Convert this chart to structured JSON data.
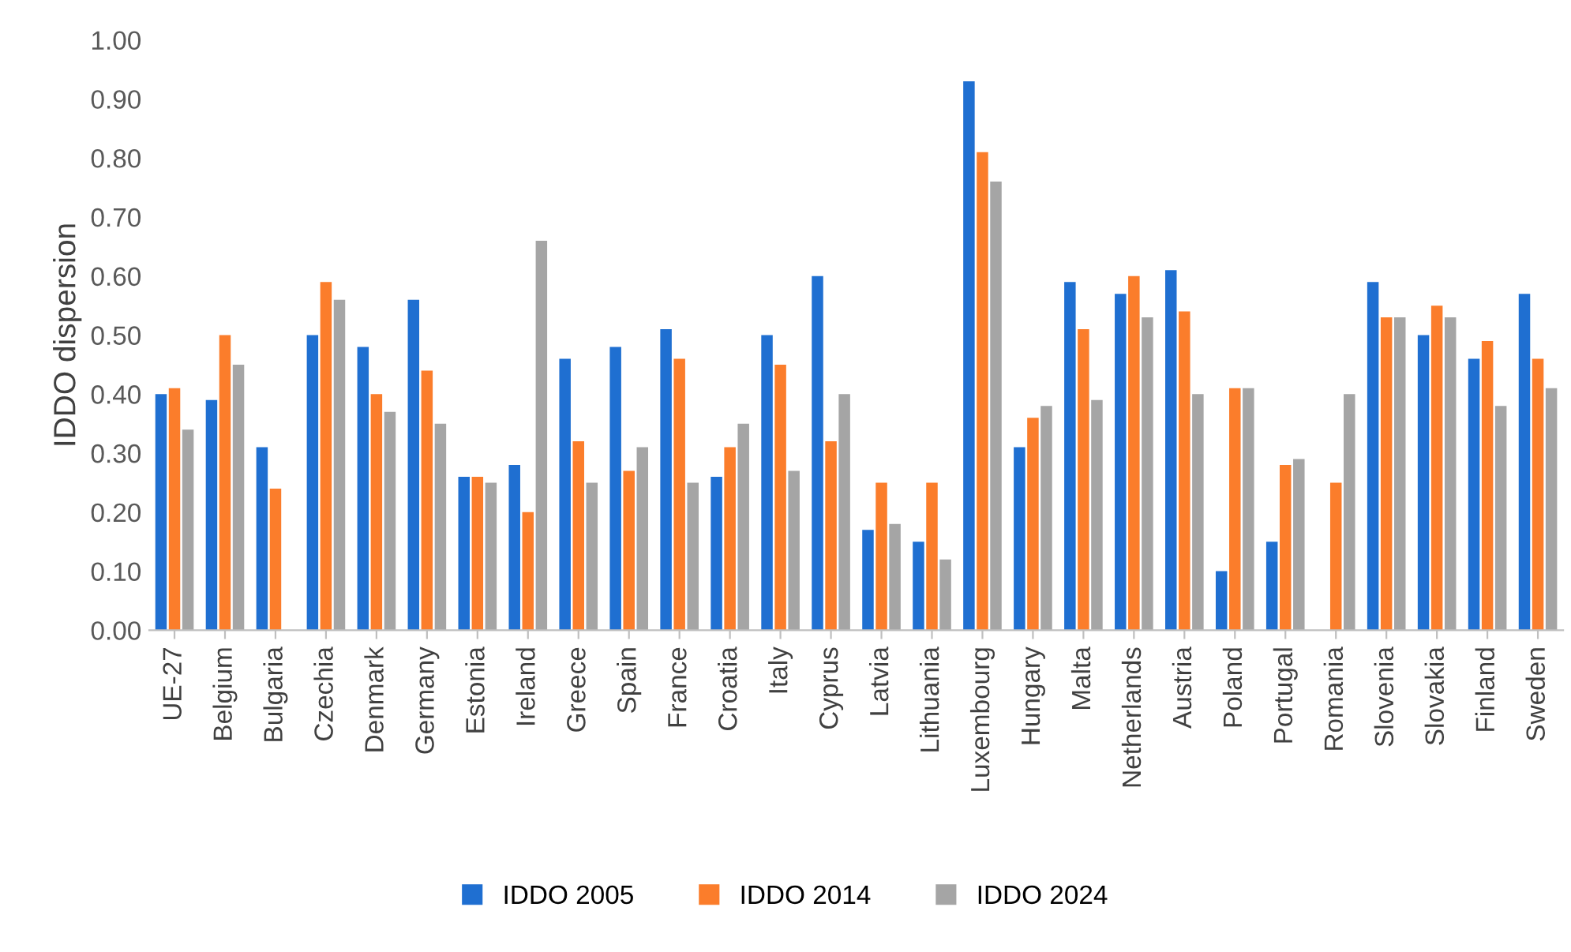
{
  "chart_data": {
    "type": "bar",
    "ylabel": "IDDO dispersion",
    "categories": [
      "UE-27",
      "Belgium",
      "Bulgaria",
      "Czechia",
      "Denmark",
      "Germany",
      "Estonia",
      "Ireland",
      "Greece",
      "Spain",
      "France",
      "Croatia",
      "Italy",
      "Cyprus",
      "Latvia",
      "Lithuania",
      "Luxembourg",
      "Hungary",
      "Malta",
      "Netherlands",
      "Austria",
      "Poland",
      "Portugal",
      "Romania",
      "Slovenia",
      "Slovakia",
      "Finland",
      "Sweden"
    ],
    "series": [
      {
        "name": "IDDO 2005",
        "color": "#1f6fd1",
        "values": [
          0.4,
          0.39,
          0.31,
          0.5,
          0.48,
          0.56,
          0.26,
          0.28,
          0.46,
          0.48,
          0.51,
          0.26,
          0.5,
          0.6,
          0.17,
          0.15,
          0.93,
          0.31,
          0.59,
          0.57,
          0.61,
          0.1,
          0.15,
          null,
          0.59,
          0.5,
          0.46,
          0.57
        ]
      },
      {
        "name": "IDDO 2014",
        "color": "#fb7d2b",
        "values": [
          0.41,
          0.5,
          0.24,
          0.59,
          0.4,
          0.44,
          0.26,
          0.2,
          0.32,
          0.27,
          0.46,
          0.31,
          0.45,
          0.32,
          0.25,
          0.25,
          0.81,
          0.36,
          0.51,
          0.6,
          0.54,
          0.41,
          0.28,
          0.25,
          0.53,
          0.55,
          0.49,
          0.46
        ]
      },
      {
        "name": "IDDO 2024",
        "color": "#a5a5a5",
        "values": [
          0.34,
          0.45,
          null,
          0.56,
          0.37,
          0.35,
          0.25,
          0.66,
          0.25,
          0.31,
          0.25,
          0.35,
          0.27,
          0.4,
          0.18,
          0.12,
          0.76,
          0.38,
          0.39,
          0.53,
          0.4,
          0.41,
          0.29,
          0.4,
          0.53,
          0.53,
          0.38,
          0.41
        ]
      }
    ],
    "ylim": [
      0,
      1.0
    ],
    "yticks": [
      {
        "value": 0,
        "label": "0.00"
      },
      {
        "value": 0.1,
        "label": "0.10"
      },
      {
        "value": 0.2,
        "label": "0.20"
      },
      {
        "value": 0.3,
        "label": "0.30"
      },
      {
        "value": 0.4,
        "label": "0.40"
      },
      {
        "value": 0.5,
        "label": "0.50"
      },
      {
        "value": 0.6,
        "label": "0.60"
      },
      {
        "value": 0.7,
        "label": "0.70"
      },
      {
        "value": 0.8,
        "label": "0.80"
      },
      {
        "value": 0.9,
        "label": "0.90"
      },
      {
        "value": 1.0,
        "label": "1.00"
      }
    ],
    "grid": false,
    "legend": "bottom"
  }
}
